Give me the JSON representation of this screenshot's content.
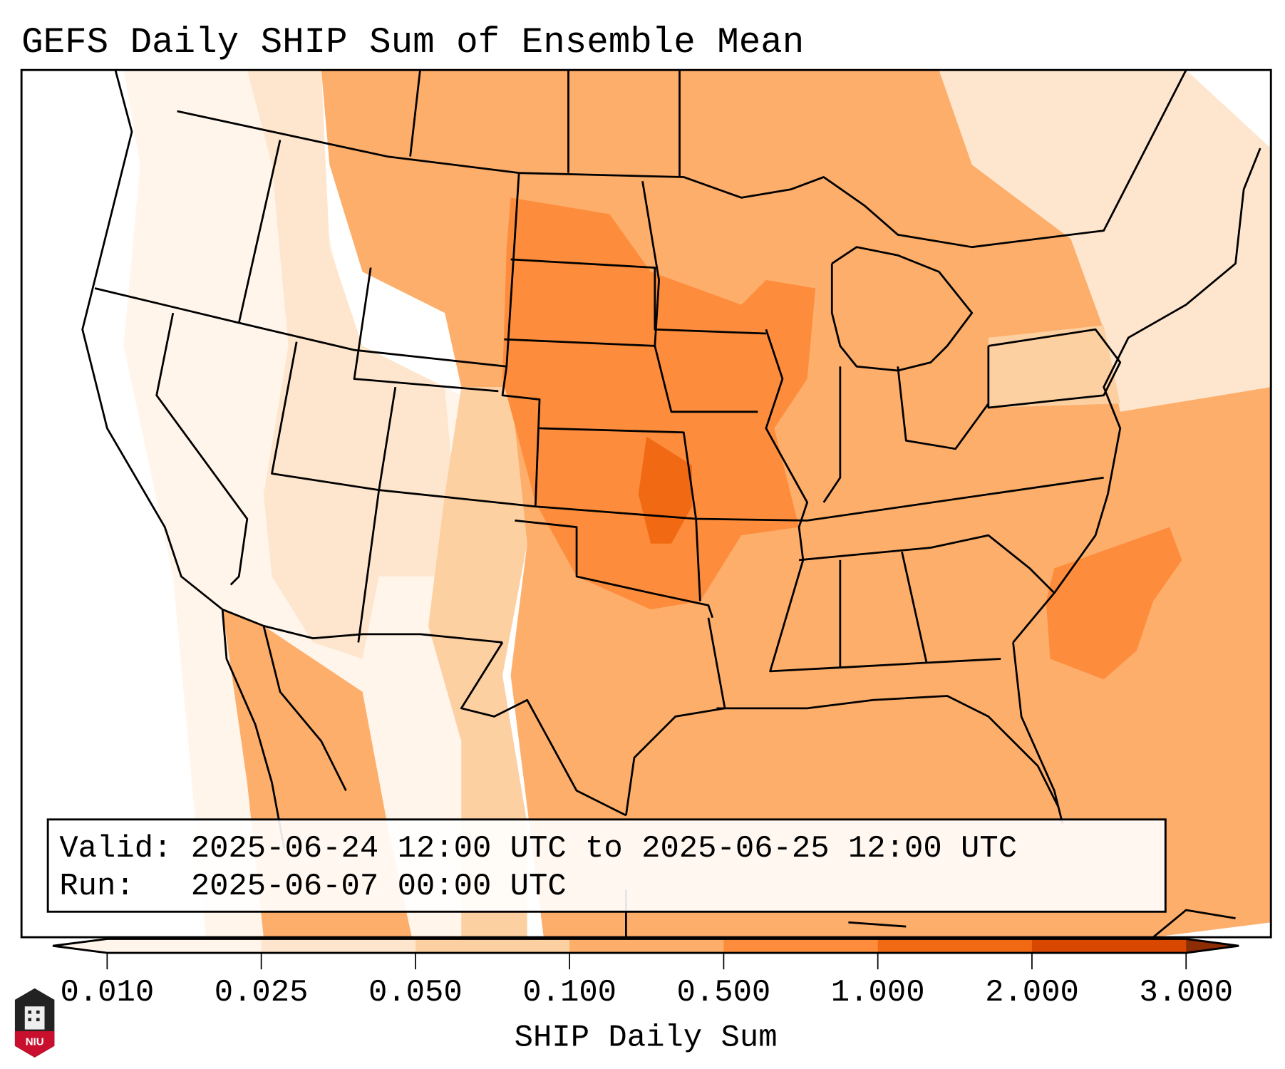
{
  "title": "GEFS Daily SHIP Sum of Ensemble Mean",
  "info_box": {
    "valid": "Valid: 2025-06-24 12:00 UTC to 2025-06-25 12:00 UTC",
    "run": "Run:   2025-06-07 00:00 UTC"
  },
  "logo": {
    "text": "NIU"
  },
  "chart_data": {
    "type": "heatmap",
    "title": "GEFS Daily SHIP Sum of Ensemble Mean",
    "region": "Contiguous United States",
    "colorbar": {
      "label": "SHIP Daily Sum",
      "ticks": [
        "0.010",
        "0.025",
        "0.050",
        "0.100",
        "0.500",
        "1.000",
        "2.000",
        "3.000"
      ],
      "extend": "both",
      "colors": [
        "#fff5eb",
        "#fee6ce",
        "#fdd0a2",
        "#fdae6b",
        "#fd8d3c",
        "#f16913",
        "#d94801",
        "#8c2d04"
      ]
    },
    "levels": [
      {
        "range": "0.100-0.500",
        "area": "Central and Eastern US, Gulf, Atlantic"
      },
      {
        "range": "0.500-1.000",
        "area": "Northern/Central Plains, Upper Midwest, offshore Carolinas"
      },
      {
        "range": "1.000-2.000",
        "area": "Central Kansas / Oklahoma"
      },
      {
        "range": "0.010-0.050",
        "area": "Intermountain West, Pacific Northwest, Northeast"
      }
    ]
  }
}
